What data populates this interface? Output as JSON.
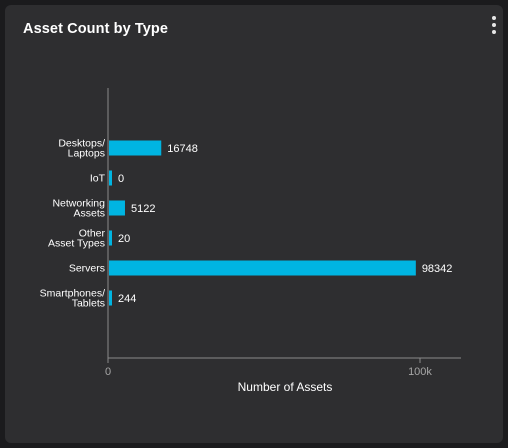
{
  "widget": {
    "title": "Asset Count by Type",
    "menu_icon": "more-vertical-icon"
  },
  "chart_data": {
    "type": "bar",
    "orientation": "horizontal",
    "title": "Asset Count by Type",
    "categories": [
      [
        "Desktops/",
        "Laptops"
      ],
      [
        "IoT"
      ],
      [
        "Networking",
        "Assets"
      ],
      [
        "Other",
        "Asset Types"
      ],
      [
        "Servers"
      ],
      [
        "Smartphones/",
        "Tablets"
      ]
    ],
    "values": [
      16748,
      0,
      5122,
      20,
      98342,
      244
    ],
    "value_labels": [
      "16748",
      "0",
      "5122",
      "20",
      "98342",
      "244"
    ],
    "xlabel": "Number of Assets",
    "ylabel": "",
    "xlim": [
      0,
      100000
    ],
    "x_ticks": [
      {
        "value": 0,
        "label": "0"
      },
      {
        "value": 100000,
        "label": "100k"
      }
    ],
    "bar_color": "#00b5e2",
    "grid": false,
    "legend": "none"
  }
}
